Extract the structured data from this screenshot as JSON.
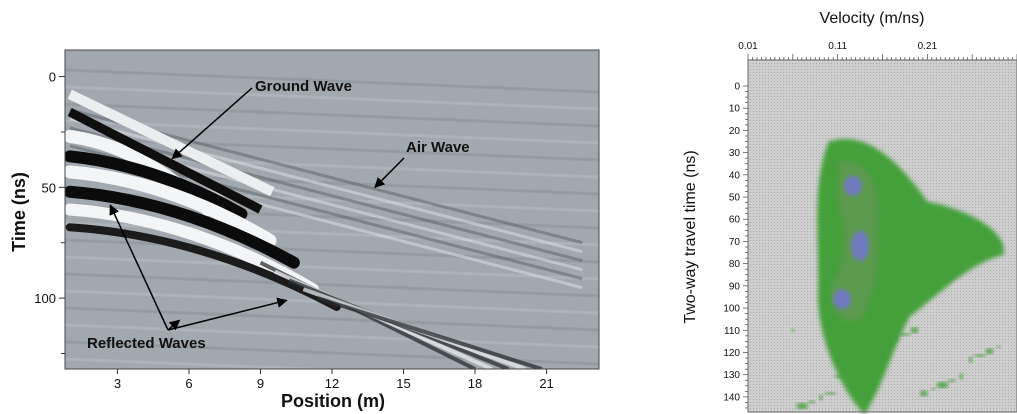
{
  "chart_data": [
    {
      "type": "heatmap",
      "xlabel": "Position (m)",
      "ylabel": "Time (ns)",
      "x_ticks": [
        "3",
        "6",
        "9",
        "12",
        "15",
        "18",
        "21"
      ],
      "y_ticks": [
        "0",
        "50",
        "100"
      ],
      "xlim": [
        0.8,
        23.2
      ],
      "ylim": [
        -12,
        132
      ],
      "annotations": [
        {
          "text": "Ground Wave",
          "target": [
            5.3,
            37
          ]
        },
        {
          "text": "Air Wave",
          "target": [
            13.8,
            50
          ]
        },
        {
          "text": "Reflected Waves",
          "targets": [
            [
              2.7,
              58
            ],
            [
              5.6,
              110
            ],
            [
              10.1,
              101
            ]
          ]
        }
      ],
      "air_wave_line": [
        [
          1.0,
          15
        ],
        [
          22.0,
          75
        ]
      ]
    },
    {
      "type": "heatmap",
      "title": "Velocity (m/ns)",
      "ylabel": "Two-way travel time (ns)",
      "x_ticks": [
        "0.01",
        "0.11",
        "0.21"
      ],
      "y_ticks": [
        "0",
        "10",
        "20",
        "30",
        "40",
        "50",
        "60",
        "70",
        "80",
        "90",
        "100",
        "110",
        "120",
        "130",
        "140"
      ],
      "xlim": [
        0.01,
        0.31
      ],
      "ylim": [
        -5,
        148
      ],
      "colors": {
        "low": "#44a03a",
        "mid": "#5c9a4e",
        "high": "#7078c0",
        "background": "#c6c6c6"
      },
      "high_regions": [
        {
          "velocity": 0.127,
          "time": 45
        },
        {
          "velocity": 0.135,
          "time": 72
        },
        {
          "velocity": 0.115,
          "time": 96
        }
      ]
    }
  ]
}
